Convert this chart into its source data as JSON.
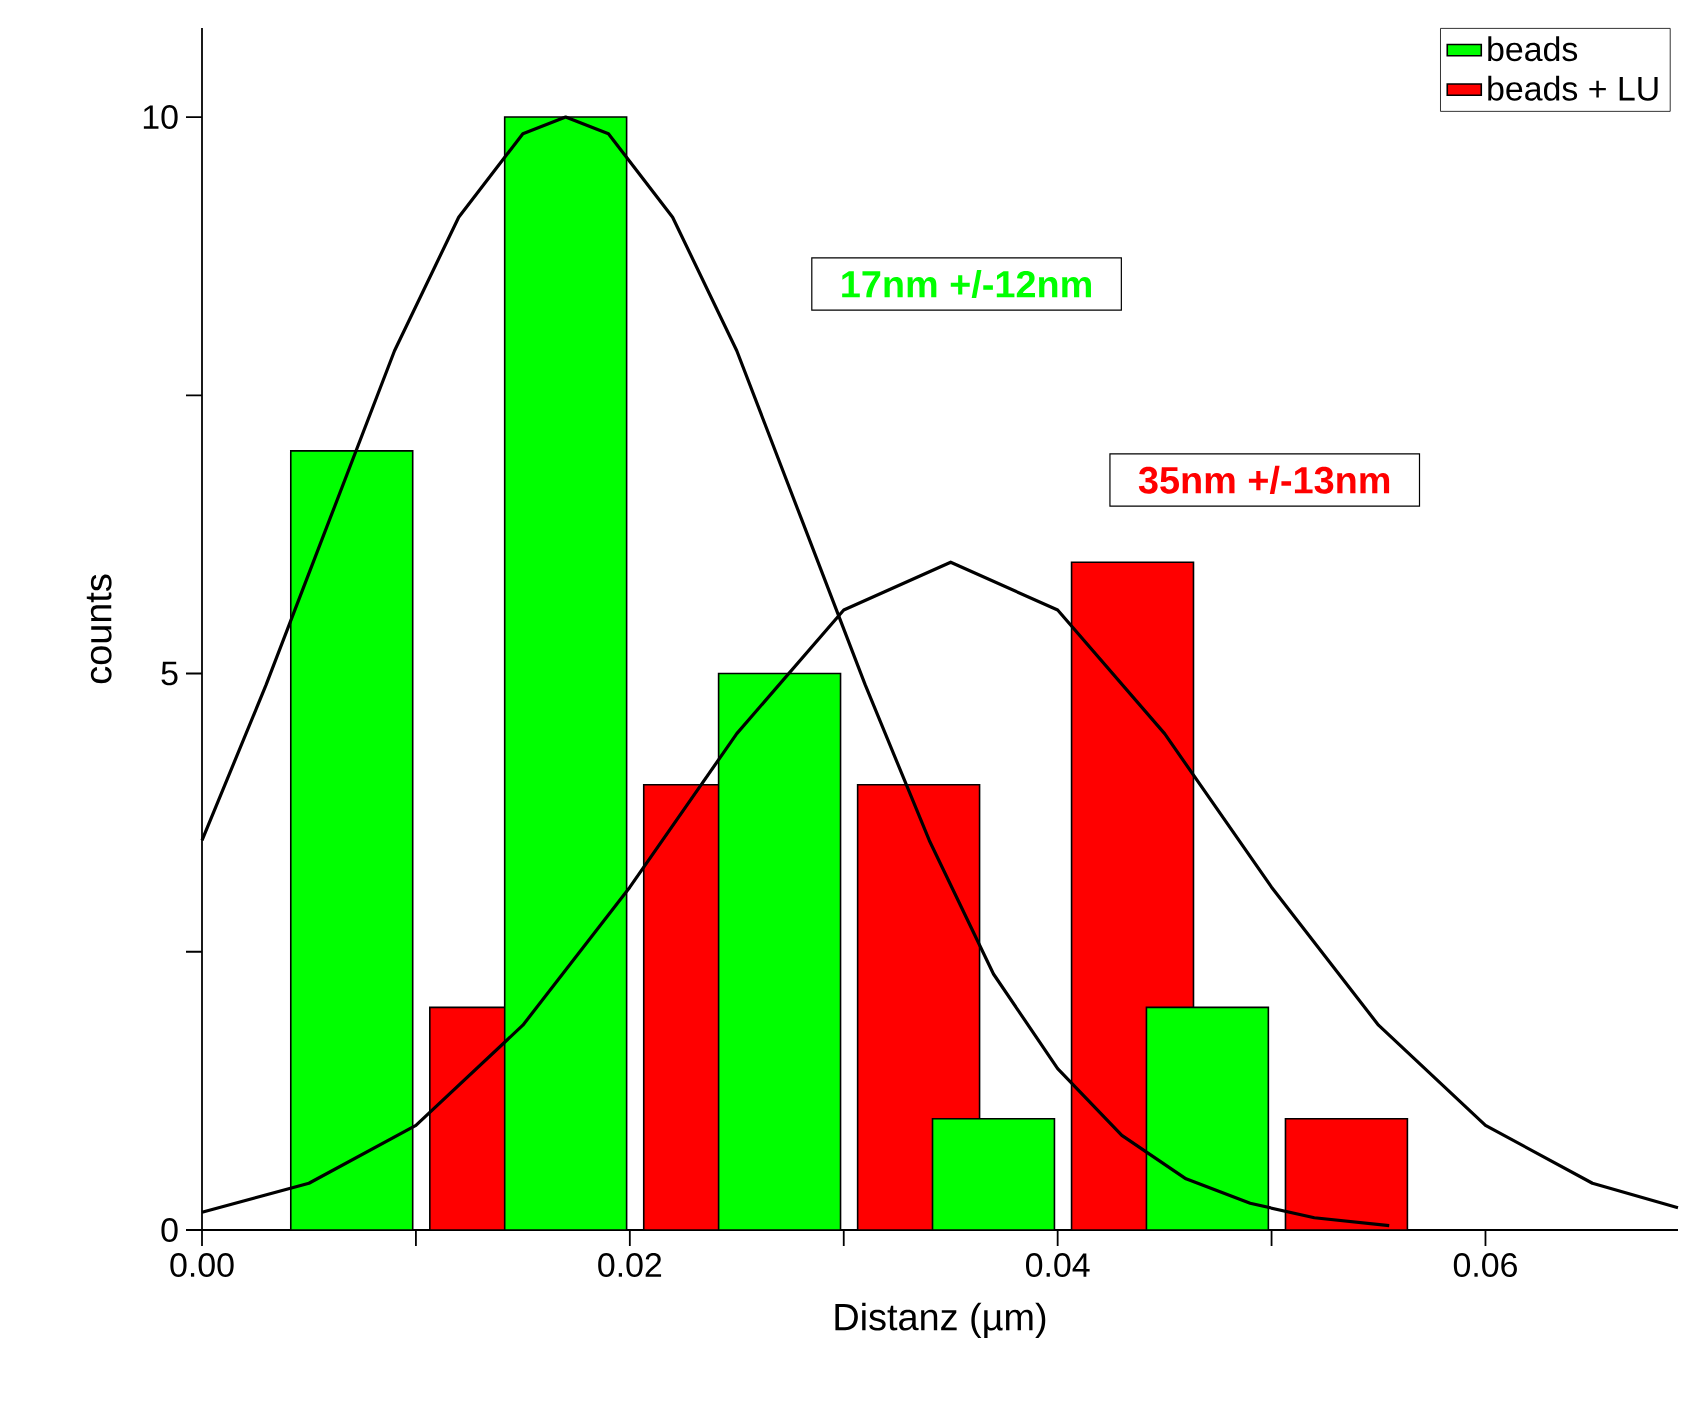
{
  "chart_data": {
    "type": "bar",
    "xlabel": "Distanz (µm)",
    "ylabel": "counts",
    "xlim": [
      0,
      0.069
    ],
    "ylim": [
      0,
      10.8
    ],
    "xticks": [
      {
        "value": 0,
        "label": "0.00"
      },
      {
        "value": 0.01,
        "label": null
      },
      {
        "value": 0.02,
        "label": "0.02"
      },
      {
        "value": 0.03,
        "label": null
      },
      {
        "value": 0.04,
        "label": "0.04"
      },
      {
        "value": 0.05,
        "label": null
      },
      {
        "value": 0.06,
        "label": "0.06"
      }
    ],
    "yticks": [
      0,
      {
        "value": 2.5,
        "label": null
      },
      5,
      {
        "value": 7.5,
        "label": null
      },
      10
    ],
    "legend": "top right",
    "grid": false,
    "annotations": [
      "17nm +/-12nm",
      "35nm +/-13nm"
    ],
    "series": [
      {
        "name": "beads",
        "color": "#00ff00",
        "x": [
          0.007,
          0.017,
          0.027,
          0.037,
          0.047
        ],
        "values": [
          7,
          10,
          5,
          1,
          2
        ]
      },
      {
        "name": "beads + LU",
        "color": "#ff0000",
        "x": [
          0.0135,
          0.0235,
          0.0335,
          0.0435,
          0.0535
        ],
        "values": [
          2,
          4,
          4,
          6,
          1
        ]
      },
      {
        "type": "line",
        "color": "#000000",
        "x": [
          0,
          0.003,
          0.006,
          0.009,
          0.012,
          0.015,
          0.017,
          0.019,
          0.022,
          0.025,
          0.028,
          0.031,
          0.034,
          0.037,
          0.04,
          0.043,
          0.046,
          0.049,
          0.052,
          0.0555
        ],
        "values": [
          3.5,
          4.9,
          6.4,
          7.9,
          9.1,
          9.85,
          10,
          9.85,
          9.1,
          7.9,
          6.4,
          4.9,
          3.5,
          2.3,
          1.45,
          0.85,
          0.46,
          0.24,
          0.11,
          0.04
        ]
      },
      {
        "type": "line",
        "color": "#000000",
        "x": [
          0,
          0.005,
          0.01,
          0.015,
          0.02,
          0.025,
          0.03,
          0.035,
          0.04,
          0.045,
          0.05,
          0.055,
          0.06,
          0.065,
          0.069
        ],
        "values": [
          0.16,
          0.42,
          0.94,
          1.84,
          3.08,
          4.46,
          5.57,
          6,
          5.57,
          4.46,
          3.08,
          1.84,
          0.94,
          0.42,
          0.2
        ]
      }
    ]
  }
}
